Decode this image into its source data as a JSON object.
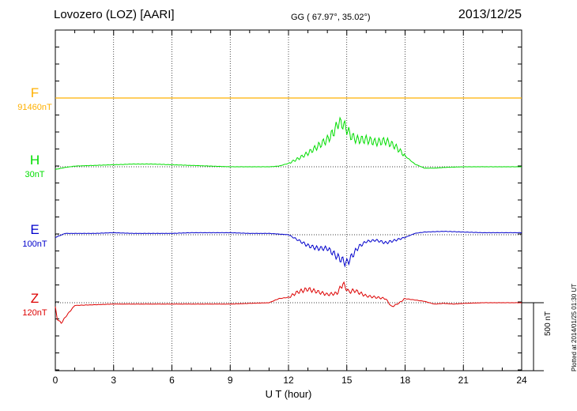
{
  "header": {
    "station": "Lovozero (LOZ)  [AARI]",
    "coords": "GG ( 67.97°,  35.02°)",
    "date": "2013/12/25"
  },
  "footer": {
    "plotted": "Plotted at 2014/01/25 01:30 UT",
    "scale_bar": "500 nT"
  },
  "colors": {
    "F": "#ffb000",
    "H": "#00dd00",
    "E": "#0000cc",
    "Z": "#dd0000"
  },
  "chart_data": {
    "type": "line",
    "xlabel": "U T (hour)",
    "xlim": [
      0,
      24
    ],
    "xticks": [
      0,
      3,
      6,
      9,
      12,
      15,
      18,
      21,
      24
    ],
    "grid": true,
    "scale_bar_nT": 500,
    "series": [
      {
        "name": "F",
        "scale": "91460nT",
        "baseline_nT": 91460,
        "x": [
          0,
          24
        ],
        "y": [
          0,
          0
        ]
      },
      {
        "name": "H",
        "scale": "30nT",
        "baseline_nT": 30,
        "x": [
          0,
          0.5,
          1,
          2,
          3,
          4,
          5,
          6,
          7,
          8,
          9,
          10,
          11,
          11.5,
          12,
          12.5,
          13,
          13.5,
          14,
          14.3,
          14.6,
          14.9,
          15.2,
          15.5,
          16,
          16.5,
          17,
          17.5,
          18,
          18.5,
          19,
          19.5,
          20,
          21,
          22,
          23,
          24
        ],
        "y": [
          -20,
          -5,
          5,
          10,
          15,
          20,
          20,
          15,
          10,
          5,
          0,
          0,
          0,
          5,
          25,
          60,
          100,
          150,
          200,
          250,
          330,
          300,
          230,
          200,
          200,
          180,
          190,
          150,
          80,
          20,
          -10,
          -10,
          -5,
          0,
          0,
          0,
          0
        ]
      },
      {
        "name": "E",
        "scale": "100nT",
        "baseline_nT": 100,
        "x": [
          0,
          0.5,
          1,
          2,
          3,
          4,
          5,
          6,
          7,
          8,
          9,
          10,
          11,
          12,
          12.5,
          13,
          13.5,
          14,
          14.5,
          15,
          15.3,
          15.6,
          16,
          16.5,
          17,
          17.5,
          18,
          18.5,
          19,
          20,
          21,
          22,
          23,
          24
        ],
        "y": [
          -20,
          10,
          10,
          10,
          15,
          10,
          10,
          10,
          15,
          15,
          15,
          10,
          10,
          0,
          -40,
          -80,
          -100,
          -100,
          -160,
          -210,
          -150,
          -90,
          -50,
          -40,
          -60,
          -40,
          -20,
          10,
          20,
          25,
          20,
          15,
          15,
          15
        ]
      },
      {
        "name": "Z",
        "scale": "120nT",
        "baseline_nT": 120,
        "x": [
          0,
          0.1,
          0.3,
          0.6,
          1,
          2,
          3,
          4,
          5,
          6,
          7,
          8,
          9,
          10,
          11,
          11.5,
          12,
          12.5,
          13,
          13.5,
          14,
          14.5,
          14.8,
          15.1,
          15.4,
          15.7,
          16,
          16.5,
          17,
          17.3,
          17.6,
          18,
          18.5,
          19,
          19.5,
          20,
          20.5,
          21,
          22,
          23,
          24
        ],
        "y": [
          -30,
          -120,
          -150,
          -90,
          -20,
          -15,
          -10,
          -10,
          -10,
          -10,
          -10,
          -10,
          -10,
          -5,
          0,
          30,
          40,
          80,
          100,
          80,
          60,
          70,
          140,
          80,
          90,
          70,
          50,
          40,
          30,
          -30,
          -10,
          30,
          20,
          10,
          -10,
          -5,
          -10,
          -5,
          0,
          0,
          0
        ]
      }
    ]
  }
}
